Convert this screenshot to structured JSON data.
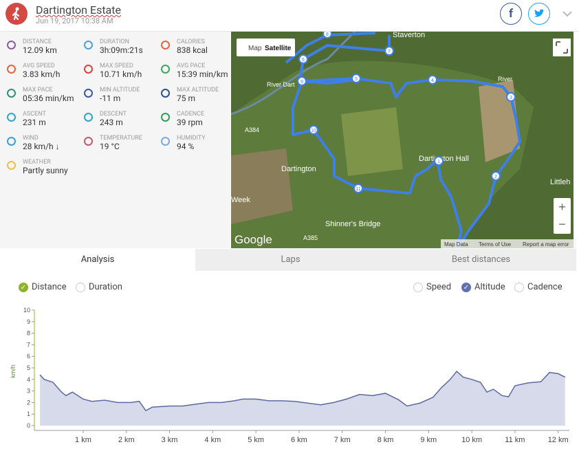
{
  "header": {
    "title": "Dartington Estate",
    "date": "Jun 19, 2017 10:38 AM"
  },
  "stats": [
    {
      "label": "DISTANCE",
      "value": "12.09 km"
    },
    {
      "label": "DURATION",
      "value": "3h:09m:21s"
    },
    {
      "label": "CALORIES",
      "value": "838 kcal"
    },
    {
      "label": "AVG SPEED",
      "value": "3.83 km/h"
    },
    {
      "label": "MAX SPEED",
      "value": "10.71 km/h"
    },
    {
      "label": "AVG PACE",
      "value": "15:39 min/km"
    },
    {
      "label": "MAX PACE",
      "value": "05:36 min/km"
    },
    {
      "label": "MIN ALTITUDE",
      "value": "-11 m"
    },
    {
      "label": "MAX ALTITUDE",
      "value": "75 m"
    },
    {
      "label": "ASCENT",
      "value": "231 m"
    },
    {
      "label": "DESCENT",
      "value": "243 m"
    },
    {
      "label": "CADENCE",
      "value": "39 rpm"
    },
    {
      "label": "WIND",
      "value": "28 km/h ↓"
    },
    {
      "label": "TEMPERATURE",
      "value": "19 °C"
    },
    {
      "label": "HUMIDITY",
      "value": "94 %"
    },
    {
      "label": "WEATHER",
      "value": "Partly sunny"
    }
  ],
  "map": {
    "buttons": [
      "Map",
      "Satellite"
    ],
    "logo": "Google",
    "footer": [
      "Map Data",
      "Terms of Use",
      "Report a map error"
    ],
    "places": [
      "Dartington",
      "Dartington Hall",
      "Shinner's Bridge",
      "River Dart",
      "Week",
      "Littleh",
      "A384",
      "A385",
      "Staverton",
      "River"
    ],
    "markers": [
      "8",
      "7",
      "6",
      "5",
      "4",
      "3",
      "9",
      "10",
      "2",
      "1",
      "11"
    ]
  },
  "tabs": [
    "Analysis",
    "Laps",
    "Best distances"
  ],
  "toggles": {
    "left": [
      "Distance",
      "Duration"
    ],
    "right": [
      "Speed",
      "Altitude",
      "Cadence"
    ]
  },
  "chart_data": {
    "type": "area",
    "ylabel": "km/h",
    "color": "#5a6a9c",
    "x": [
      0,
      0.1,
      0.3,
      0.5,
      0.6,
      0.75,
      1.0,
      1.2,
      1.5,
      1.8,
      2.1,
      2.3,
      2.45,
      2.6,
      3.0,
      3.3,
      3.6,
      3.9,
      4.2,
      4.5,
      4.7,
      5.0,
      5.3,
      5.6,
      5.9,
      6.2,
      6.5,
      6.8,
      7.1,
      7.4,
      7.7,
      8.0,
      8.3,
      8.5,
      8.8,
      9.1,
      9.3,
      9.5,
      9.65,
      9.8,
      10.0,
      10.2,
      10.35,
      10.5,
      10.7,
      10.85,
      11.0,
      11.3,
      11.6,
      11.8,
      12.0,
      12.16
    ],
    "values": [
      4.4,
      4.0,
      3.75,
      2.9,
      2.6,
      2.9,
      2.3,
      2.1,
      2.2,
      2.0,
      2.0,
      2.1,
      1.3,
      1.6,
      1.7,
      1.7,
      1.85,
      2.0,
      2.0,
      2.15,
      2.3,
      2.3,
      2.15,
      2.15,
      2.1,
      1.95,
      1.8,
      2.0,
      2.3,
      2.7,
      2.6,
      2.8,
      2.25,
      1.7,
      1.95,
      2.45,
      3.3,
      4.0,
      4.7,
      4.2,
      4.0,
      3.75,
      2.9,
      3.15,
      2.6,
      2.5,
      3.45,
      3.7,
      3.8,
      4.6,
      4.5,
      4.2
    ],
    "xlim": [
      -0.13,
      12.26
    ],
    "ylim": [
      0,
      10
    ],
    "yticks": [
      0,
      1,
      2,
      3,
      4,
      5,
      6,
      7,
      8,
      9,
      10
    ],
    "xticks": [
      {
        "value": 1,
        "label": "1 km"
      },
      {
        "value": 2,
        "label": "2 km"
      },
      {
        "value": 3,
        "label": "3 km"
      },
      {
        "value": 4,
        "label": "4 km"
      },
      {
        "value": 5,
        "label": "5 km"
      },
      {
        "value": 6,
        "label": "6 km"
      },
      {
        "value": 7,
        "label": "7 km"
      },
      {
        "value": 8,
        "label": "8 km"
      },
      {
        "value": 9,
        "label": "9 km"
      },
      {
        "value": 10,
        "label": "10 km"
      },
      {
        "value": 11,
        "label": "11 km"
      },
      {
        "value": 12,
        "label": "12 km"
      }
    ]
  }
}
